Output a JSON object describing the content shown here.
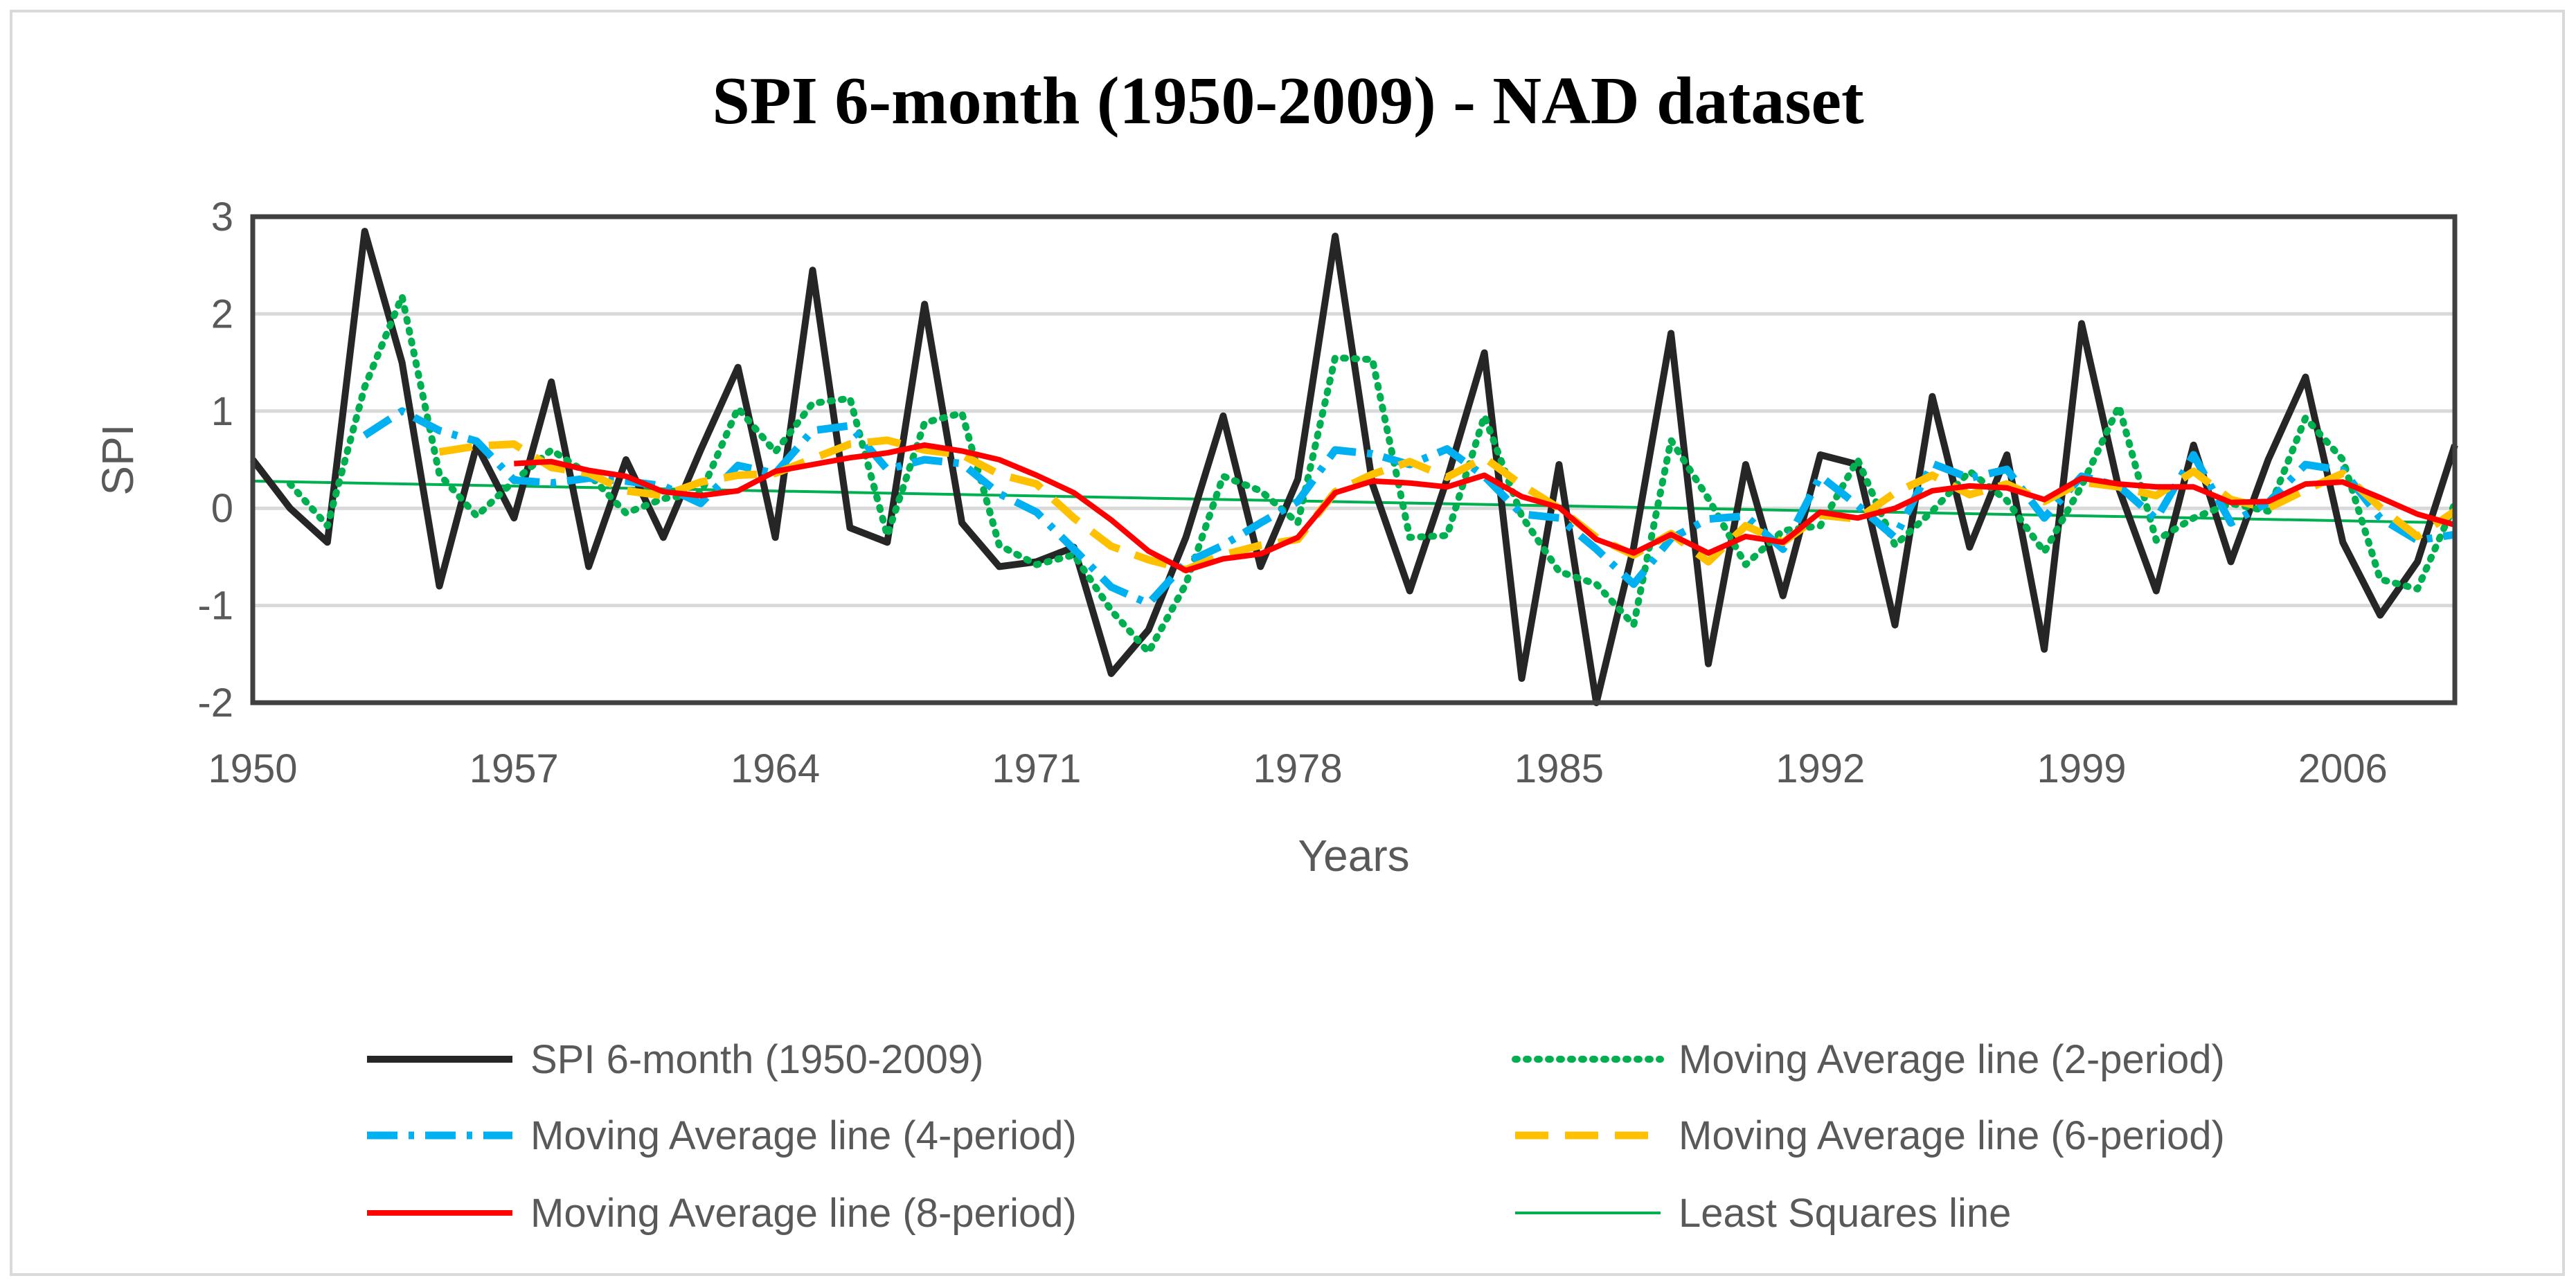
{
  "chart_data": {
    "type": "line",
    "title": "SPI 6-month (1950-2009) - NAD dataset",
    "xlabel": "Years",
    "ylabel": "SPI",
    "xlim": [
      1950,
      2009
    ],
    "ylim": [
      -2,
      3
    ],
    "x_ticks": [
      "1950",
      "1957",
      "1964",
      "1971",
      "1978",
      "1985",
      "1992",
      "1999",
      "2006"
    ],
    "y_ticks": [
      "3",
      "2",
      "1",
      "0",
      "-1",
      "-2"
    ],
    "grid": true,
    "legend_position": "bottom",
    "x": [
      1950,
      1951,
      1952,
      1953,
      1954,
      1955,
      1956,
      1957,
      1958,
      1959,
      1960,
      1961,
      1962,
      1963,
      1964,
      1965,
      1966,
      1967,
      1968,
      1969,
      1970,
      1971,
      1972,
      1973,
      1974,
      1975,
      1976,
      1977,
      1978,
      1979,
      1980,
      1981,
      1982,
      1983,
      1984,
      1985,
      1986,
      1987,
      1988,
      1989,
      1990,
      1991,
      1992,
      1993,
      1994,
      1995,
      1996,
      1997,
      1998,
      1999,
      2000,
      2001,
      2002,
      2003,
      2004,
      2005,
      2006,
      2007,
      2008,
      2009
    ],
    "series": [
      {
        "name": "SPI 6-month (1950-2009)",
        "color": "#262626",
        "style": "solid-thick",
        "values": [
          0.5,
          0.0,
          -0.35,
          2.85,
          1.5,
          -0.8,
          0.65,
          -0.1,
          1.3,
          -0.6,
          0.5,
          -0.3,
          0.6,
          1.45,
          -0.3,
          2.45,
          -0.2,
          -0.35,
          2.1,
          -0.15,
          -0.6,
          -0.55,
          -0.4,
          -1.7,
          -1.25,
          -0.3,
          0.95,
          -0.6,
          0.3,
          2.8,
          0.25,
          -0.85,
          0.3,
          1.6,
          -1.75,
          0.45,
          -2.0,
          -0.4,
          1.8,
          -1.6,
          0.45,
          -0.9,
          0.55,
          0.45,
          -1.2,
          1.15,
          -0.4,
          0.55,
          -1.45,
          1.9,
          0.2,
          -0.85,
          0.65,
          -0.55,
          0.5,
          1.35,
          -0.35,
          -1.1,
          -0.55,
          0.65
        ]
      },
      {
        "name": "Moving Average line (2-period)",
        "color": "#00b050",
        "style": "dotted",
        "values": [
          null,
          0.25,
          -0.18,
          1.25,
          2.18,
          0.35,
          -0.08,
          0.28,
          0.6,
          0.35,
          -0.05,
          0.1,
          0.15,
          1.03,
          0.58,
          1.08,
          1.13,
          -0.28,
          0.88,
          0.98,
          -0.38,
          -0.58,
          -0.48,
          -1.05,
          -1.48,
          -0.78,
          0.33,
          0.18,
          -0.15,
          1.55,
          1.53,
          -0.3,
          -0.28,
          0.95,
          -0.08,
          -0.65,
          -0.78,
          -1.2,
          0.7,
          0.1,
          -0.58,
          -0.23,
          -0.18,
          0.5,
          -0.38,
          -0.03,
          0.38,
          0.08,
          -0.45,
          0.23,
          1.05,
          -0.33,
          -0.1,
          0.05,
          -0.03,
          0.93,
          0.5,
          -0.73,
          -0.83,
          0.05
        ]
      },
      {
        "name": "Moving Average line (4-period)",
        "color": "#00b0f0",
        "style": "dash-dot",
        "values": [
          null,
          null,
          null,
          0.75,
          1.0,
          0.8,
          0.69,
          0.29,
          0.26,
          0.31,
          0.28,
          0.23,
          0.05,
          0.44,
          0.36,
          0.8,
          0.85,
          0.4,
          0.5,
          0.46,
          0.15,
          -0.04,
          -0.42,
          -0.81,
          -0.98,
          -0.56,
          -0.38,
          -0.15,
          0.07,
          0.6,
          0.56,
          0.45,
          0.61,
          0.33,
          -0.06,
          -0.1,
          -0.42,
          -0.78,
          -0.31,
          -0.11,
          -0.08,
          -0.42,
          0.33,
          0.03,
          -0.3,
          0.46,
          0.31,
          0.4,
          -0.1,
          0.33,
          0.23,
          -0.11,
          0.55,
          -0.15,
          0.06,
          0.45,
          0.39,
          -0.1,
          -0.33,
          -0.27
        ]
      },
      {
        "name": "Moving Average line (6-period)",
        "color": "#ffc000",
        "style": "dashed",
        "values": [
          null,
          null,
          null,
          null,
          null,
          0.58,
          0.64,
          0.66,
          0.42,
          0.36,
          0.18,
          0.13,
          0.27,
          0.34,
          0.36,
          0.51,
          0.66,
          0.7,
          0.6,
          0.55,
          0.35,
          0.25,
          -0.1,
          -0.39,
          -0.53,
          -0.63,
          -0.48,
          -0.38,
          -0.32,
          0.17,
          0.35,
          0.48,
          0.32,
          0.52,
          0.24,
          0.0,
          -0.3,
          -0.48,
          -0.26,
          -0.55,
          -0.18,
          -0.35,
          -0.07,
          -0.11,
          0.16,
          0.34,
          0.14,
          0.25,
          0.07,
          0.27,
          0.22,
          0.13,
          0.38,
          0.09,
          0.0,
          0.19,
          0.36,
          0.01,
          -0.29,
          -0.03
        ]
      },
      {
        "name": "Moving Average line (8-period)",
        "color": "#ff0000",
        "style": "solid",
        "values": [
          null,
          null,
          null,
          null,
          null,
          null,
          null,
          0.46,
          0.48,
          0.39,
          0.33,
          0.17,
          0.13,
          0.18,
          0.38,
          0.45,
          0.52,
          0.57,
          0.65,
          0.59,
          0.5,
          0.34,
          0.16,
          -0.12,
          -0.44,
          -0.64,
          -0.52,
          -0.47,
          -0.3,
          0.16,
          0.28,
          0.26,
          0.22,
          0.34,
          0.12,
          0.01,
          -0.32,
          -0.46,
          -0.27,
          -0.46,
          -0.29,
          -0.35,
          -0.04,
          -0.1,
          0.0,
          0.18,
          0.23,
          0.21,
          0.09,
          0.31,
          0.25,
          0.22,
          0.22,
          0.06,
          0.07,
          0.25,
          0.27,
          0.11,
          -0.06,
          -0.17
        ]
      },
      {
        "name": "Least Squares line",
        "color": "#00b050",
        "style": "thin",
        "values": [
          0.28,
          null,
          null,
          null,
          null,
          null,
          null,
          null,
          null,
          null,
          null,
          null,
          null,
          null,
          null,
          null,
          null,
          null,
          null,
          null,
          null,
          null,
          null,
          null,
          null,
          null,
          null,
          null,
          null,
          null,
          null,
          null,
          null,
          null,
          null,
          null,
          null,
          null,
          null,
          null,
          null,
          null,
          null,
          null,
          null,
          null,
          null,
          null,
          null,
          null,
          null,
          null,
          null,
          null,
          null,
          null,
          null,
          null,
          null,
          -0.15
        ]
      }
    ]
  },
  "legend": [
    {
      "label": "SPI 6-month (1950-2009)",
      "color": "#262626"
    },
    {
      "label": "Moving Average line (2-period)",
      "color": "#00b050"
    },
    {
      "label": "Moving Average line (4-period)",
      "color": "#00b0f0"
    },
    {
      "label": "Moving Average line (6-period)",
      "color": "#ffc000"
    },
    {
      "label": "Moving Average line (8-period)",
      "color": "#ff0000"
    },
    {
      "label": "Least Squares line",
      "color": "#00b050"
    }
  ]
}
